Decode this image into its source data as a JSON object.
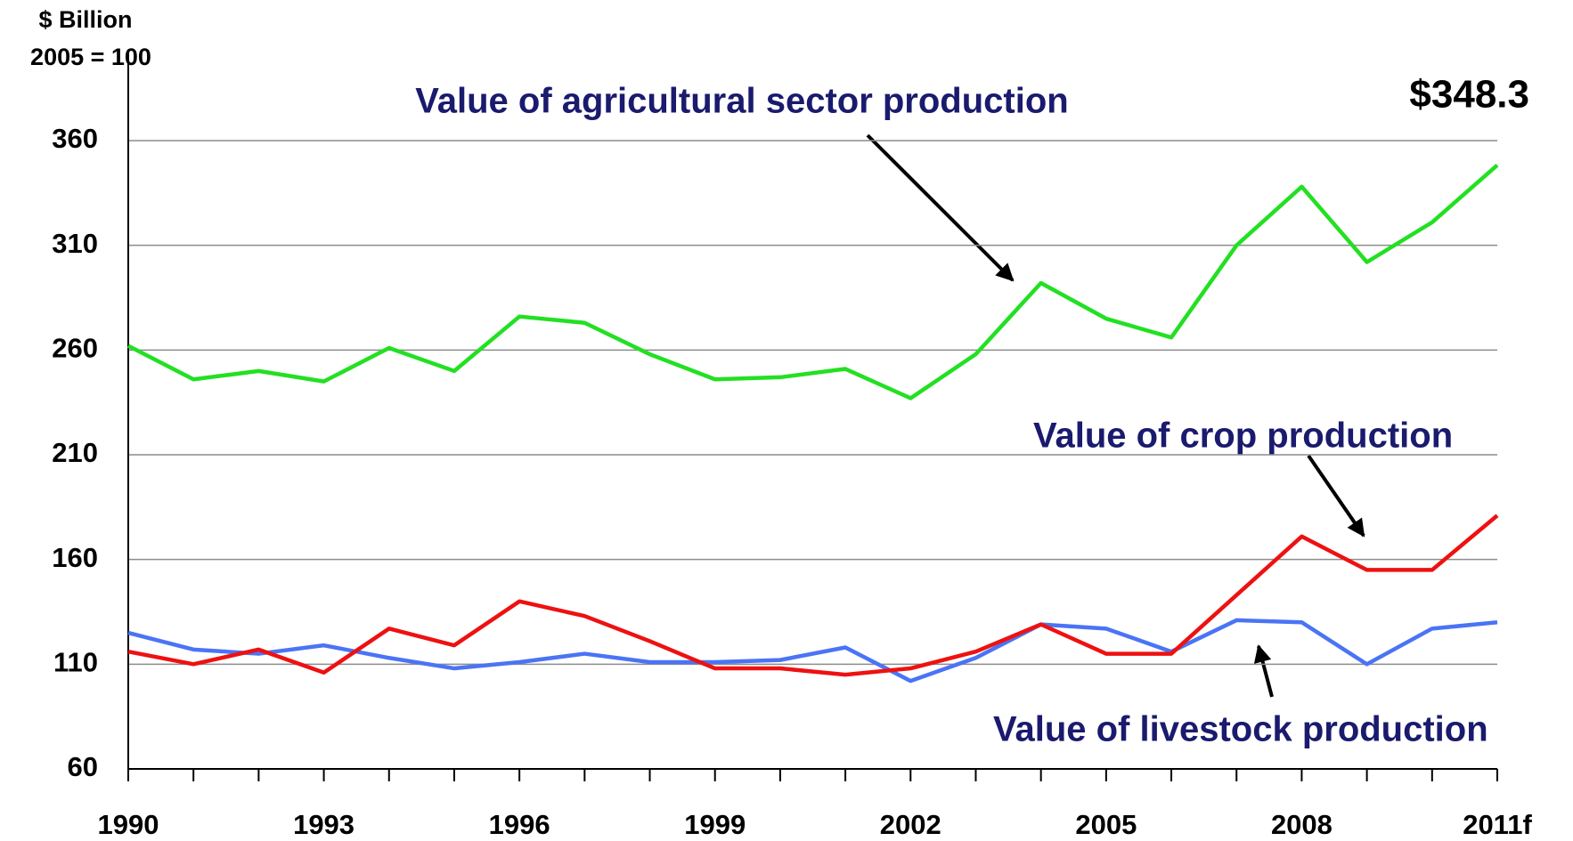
{
  "chart_data": {
    "type": "line",
    "title": "Value of agricultural sector production",
    "y_axis_label": [
      "$ Billion",
      "2005 = 100"
    ],
    "annotations": {
      "total_label": "$348.3",
      "crop_label": "Value of crop production",
      "livestock_label": "Value of livestock production"
    },
    "categories": [
      "1990",
      null,
      null,
      "1993",
      null,
      null,
      "1996",
      null,
      null,
      "1999",
      null,
      null,
      "2002",
      null,
      null,
      "2005",
      null,
      null,
      "2008",
      null,
      null,
      "2011f"
    ],
    "series": [
      {
        "name": "Value of agricultural sector production",
        "color": "#22e022",
        "values": [
          262,
          246,
          250,
          245,
          261,
          250,
          276,
          273,
          258,
          246,
          247,
          251,
          237,
          258,
          292,
          275,
          266,
          310,
          338,
          302,
          321,
          348.3
        ]
      },
      {
        "name": "Value of crop production",
        "color": "#ee1111",
        "values": [
          116,
          110,
          117,
          106,
          127,
          119,
          140,
          133,
          121,
          108,
          108,
          105,
          108,
          116,
          129,
          115,
          115,
          143,
          171,
          155,
          155,
          181
        ]
      },
      {
        "name": "Value of livestock production",
        "color": "#4a74f5",
        "values": [
          125,
          117,
          115,
          119,
          113,
          108,
          111,
          115,
          111,
          111,
          112,
          118,
          102,
          113,
          129,
          127,
          116,
          131,
          130,
          110,
          127,
          130
        ]
      }
    ],
    "ylim": [
      60,
      360
    ],
    "yticks": [
      60,
      110,
      160,
      210,
      260,
      310,
      360
    ],
    "grid": true
  }
}
